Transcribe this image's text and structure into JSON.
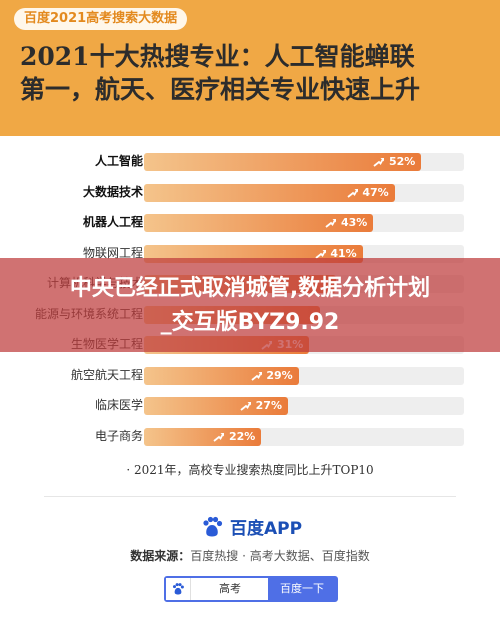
{
  "header": {
    "tag": "百度2021高考搜索大数据",
    "title_line1": "2021十大热搜专业：人工智能蝉联",
    "title_line2": "第一，航天、医疗相关专业快速上升",
    "bg_color": "#f0a845"
  },
  "chart_data": {
    "type": "bar",
    "orientation": "horizontal",
    "categories": [
      "人工智能",
      "大数据技术",
      "机器人工程",
      "物联网工程",
      "计算机科学与技术",
      "能源与环境系统工程",
      "生物医学工程",
      "航空航天工程",
      "临床医学",
      "电子商务"
    ],
    "values": [
      52,
      47,
      43,
      41,
      36,
      33,
      31,
      29,
      27,
      22
    ],
    "value_labels": [
      "52%",
      "47%",
      "43%",
      "41%",
      "",
      "",
      "31%",
      "29%",
      "27%",
      "22%"
    ],
    "unit": "%",
    "title": "",
    "xlabel": "",
    "ylabel": "",
    "xlim": [
      0,
      60
    ],
    "bold_categories": [
      "人工智能",
      "大数据技术",
      "机器人工程"
    ],
    "bar_color": "#ea7b3a",
    "grid": false,
    "legend": "none"
  },
  "footnote": "· 2021年，高校专业搜索热度同比上升TOP10",
  "footer": {
    "app_name": "百度APP",
    "source_key": "数据来源：",
    "source_value": "百度热搜 · 高考大数据、百度指数",
    "search_value": "高考",
    "search_button": "百度一下"
  },
  "overlay": {
    "line1": "中央已经正式取消城管,数据分析计划",
    "line2": "_交互版BYZ9.92"
  }
}
